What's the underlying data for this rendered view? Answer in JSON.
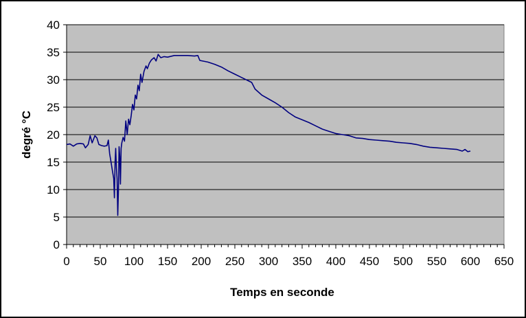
{
  "chart_data": {
    "type": "line",
    "xlabel": "Temps en seconde",
    "ylabel": "degré °C",
    "xlim": [
      0,
      650
    ],
    "ylim": [
      0,
      40
    ],
    "x_ticks": [
      0,
      50,
      100,
      150,
      200,
      250,
      300,
      350,
      400,
      450,
      500,
      550,
      600,
      650
    ],
    "y_ticks": [
      0,
      5,
      10,
      15,
      20,
      25,
      30,
      35,
      40
    ],
    "grid": "horizontal major",
    "legend": "none",
    "plot_background": "#c0c0c0",
    "series": [
      {
        "color": "#000080",
        "points": [
          [
            0,
            18.2
          ],
          [
            5,
            18.3
          ],
          [
            10,
            17.9
          ],
          [
            15,
            18.3
          ],
          [
            20,
            18.4
          ],
          [
            25,
            18.3
          ],
          [
            28,
            17.6
          ],
          [
            32,
            18.2
          ],
          [
            35,
            19.8
          ],
          [
            38,
            18.5
          ],
          [
            42,
            19.8
          ],
          [
            45,
            19.4
          ],
          [
            48,
            18.2
          ],
          [
            52,
            18.0
          ],
          [
            56,
            17.9
          ],
          [
            60,
            18.0
          ],
          [
            62,
            19.0
          ],
          [
            64,
            16.5
          ],
          [
            66,
            15.0
          ],
          [
            68,
            13.5
          ],
          [
            70,
            12.0
          ],
          [
            71,
            8.5
          ],
          [
            72,
            15.0
          ],
          [
            73,
            17.5
          ],
          [
            74,
            14.0
          ],
          [
            75,
            12.0
          ],
          [
            76,
            5.3
          ],
          [
            77,
            10.0
          ],
          [
            78,
            17.8
          ],
          [
            79,
            16.0
          ],
          [
            80,
            11.0
          ],
          [
            81,
            17.5
          ],
          [
            82,
            18.5
          ],
          [
            84,
            19.5
          ],
          [
            86,
            18.8
          ],
          [
            88,
            22.5
          ],
          [
            90,
            20.0
          ],
          [
            92,
            22.8
          ],
          [
            94,
            21.8
          ],
          [
            96,
            23.5
          ],
          [
            98,
            25.5
          ],
          [
            100,
            24.5
          ],
          [
            102,
            27.2
          ],
          [
            104,
            26.5
          ],
          [
            106,
            29.0
          ],
          [
            108,
            28.0
          ],
          [
            110,
            31.0
          ],
          [
            112,
            29.5
          ],
          [
            115,
            31.5
          ],
          [
            118,
            32.5
          ],
          [
            120,
            32.0
          ],
          [
            123,
            33.0
          ],
          [
            126,
            33.6
          ],
          [
            130,
            34.0
          ],
          [
            133,
            33.4
          ],
          [
            136,
            34.6
          ],
          [
            140,
            34.0
          ],
          [
            145,
            34.2
          ],
          [
            150,
            34.1
          ],
          [
            160,
            34.4
          ],
          [
            170,
            34.4
          ],
          [
            180,
            34.4
          ],
          [
            190,
            34.3
          ],
          [
            195,
            34.4
          ],
          [
            198,
            33.5
          ],
          [
            210,
            33.2
          ],
          [
            220,
            32.8
          ],
          [
            230,
            32.3
          ],
          [
            240,
            31.6
          ],
          [
            250,
            31.0
          ],
          [
            260,
            30.4
          ],
          [
            270,
            29.8
          ],
          [
            275,
            29.5
          ],
          [
            280,
            28.3
          ],
          [
            290,
            27.2
          ],
          [
            300,
            26.5
          ],
          [
            310,
            25.8
          ],
          [
            320,
            25.0
          ],
          [
            330,
            24.0
          ],
          [
            340,
            23.2
          ],
          [
            350,
            22.7
          ],
          [
            360,
            22.2
          ],
          [
            370,
            21.6
          ],
          [
            380,
            21.0
          ],
          [
            390,
            20.6
          ],
          [
            400,
            20.2
          ],
          [
            410,
            20.0
          ],
          [
            420,
            19.8
          ],
          [
            430,
            19.4
          ],
          [
            440,
            19.3
          ],
          [
            450,
            19.1
          ],
          [
            460,
            19.0
          ],
          [
            470,
            18.9
          ],
          [
            480,
            18.8
          ],
          [
            490,
            18.6
          ],
          [
            500,
            18.5
          ],
          [
            510,
            18.4
          ],
          [
            520,
            18.2
          ],
          [
            530,
            17.9
          ],
          [
            540,
            17.7
          ],
          [
            550,
            17.6
          ],
          [
            560,
            17.5
          ],
          [
            570,
            17.4
          ],
          [
            580,
            17.3
          ],
          [
            588,
            17.0
          ],
          [
            592,
            17.3
          ],
          [
            596,
            16.9
          ],
          [
            600,
            17.0
          ]
        ]
      }
    ]
  }
}
